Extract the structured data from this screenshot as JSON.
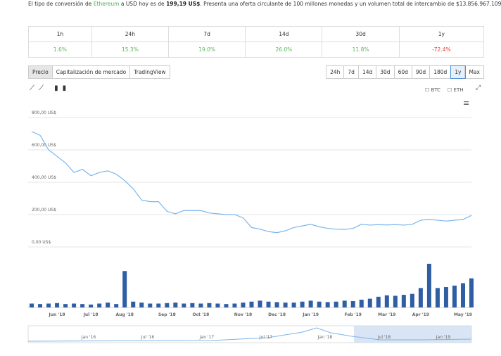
{
  "intro": {
    "prefix": "El tipo de conversión de ",
    "link": "Ethereum",
    "middle": " a USD hoy es de ",
    "price": "199,19 US$",
    "suffix": ". Presenta una oferta circulante de 100 millones monedas y un volumen total de intercambio de $13.856.967.109"
  },
  "changes": {
    "headers": [
      "1h",
      "24h",
      "7d",
      "14d",
      "30d",
      "1y"
    ],
    "values": [
      "1.6%",
      "15.3%",
      "19.0%",
      "26.0%",
      "11.8%",
      "-72.4%"
    ]
  },
  "tabs": [
    "Precio",
    "Capitalización de mercado",
    "TradingView"
  ],
  "active_tab": 0,
  "ranges": [
    "24h",
    "7d",
    "14d",
    "30d",
    "60d",
    "90d",
    "180d",
    "1y",
    "Max"
  ],
  "active_range": 7,
  "toggles": [
    "BTC",
    "ETH"
  ],
  "navigator_labels": [
    "Jan '16",
    "Jul '16",
    "Jan '17",
    "Jul '17",
    "Jan '18",
    "Jul '18",
    "Jan '19"
  ],
  "chart_data": {
    "type": "line",
    "categories": [
      null,
      null,
      null,
      "Jun '18",
      null,
      null,
      null,
      "Jul '18",
      null,
      null,
      null,
      "Aug '18",
      null,
      null,
      null,
      null,
      "Sep '18",
      null,
      null,
      null,
      "Oct '18",
      null,
      null,
      null,
      null,
      "Nov '18",
      null,
      null,
      null,
      "Dec '18",
      null,
      null,
      null,
      "Jan '19",
      null,
      null,
      null,
      null,
      "Feb '19",
      null,
      null,
      null,
      "Mar '19",
      null,
      null,
      null,
      "Apr '19",
      null,
      null,
      null,
      null,
      "May '19",
      null
    ],
    "series": [
      {
        "color": "#7cb5ec",
        "values": [
          713,
          690,
          600,
          560,
          520,
          460,
          480,
          440,
          460,
          470,
          450,
          410,
          360,
          290,
          280,
          280,
          220,
          205,
          225,
          225,
          225,
          210,
          205,
          200,
          200,
          180,
          120,
          110,
          95,
          88,
          100,
          120,
          130,
          140,
          125,
          115,
          110,
          108,
          115,
          140,
          135,
          138,
          136,
          138,
          135,
          140,
          165,
          170,
          165,
          160,
          165,
          170,
          195
        ]
      },
      {
        "color": "#2f5ea3",
        "axis": "y2",
        "values": [
          8,
          7,
          8,
          9,
          7,
          8,
          7,
          6,
          8,
          10,
          7,
          75,
          12,
          10,
          8,
          8,
          9,
          10,
          8,
          9,
          8,
          9,
          8,
          7,
          8,
          10,
          12,
          14,
          12,
          11,
          10,
          10,
          12,
          14,
          12,
          11,
          12,
          14,
          13,
          16,
          18,
          22,
          25,
          24,
          26,
          28,
          40,
          90,
          40,
          42,
          45,
          50,
          60
        ]
      }
    ],
    "ylim": [
      0,
      850
    ],
    "yticks": [
      {
        "value": 0,
        "label": "0,00 US$"
      },
      {
        "value": 200,
        "label": "200,00 US$"
      },
      {
        "value": 400,
        "label": "400,00 US$"
      },
      {
        "value": 600,
        "label": "600,00 US$"
      },
      {
        "value": 800,
        "label": "800,00 US$"
      }
    ],
    "y2lim": [
      0,
      100
    ],
    "grid": true
  }
}
